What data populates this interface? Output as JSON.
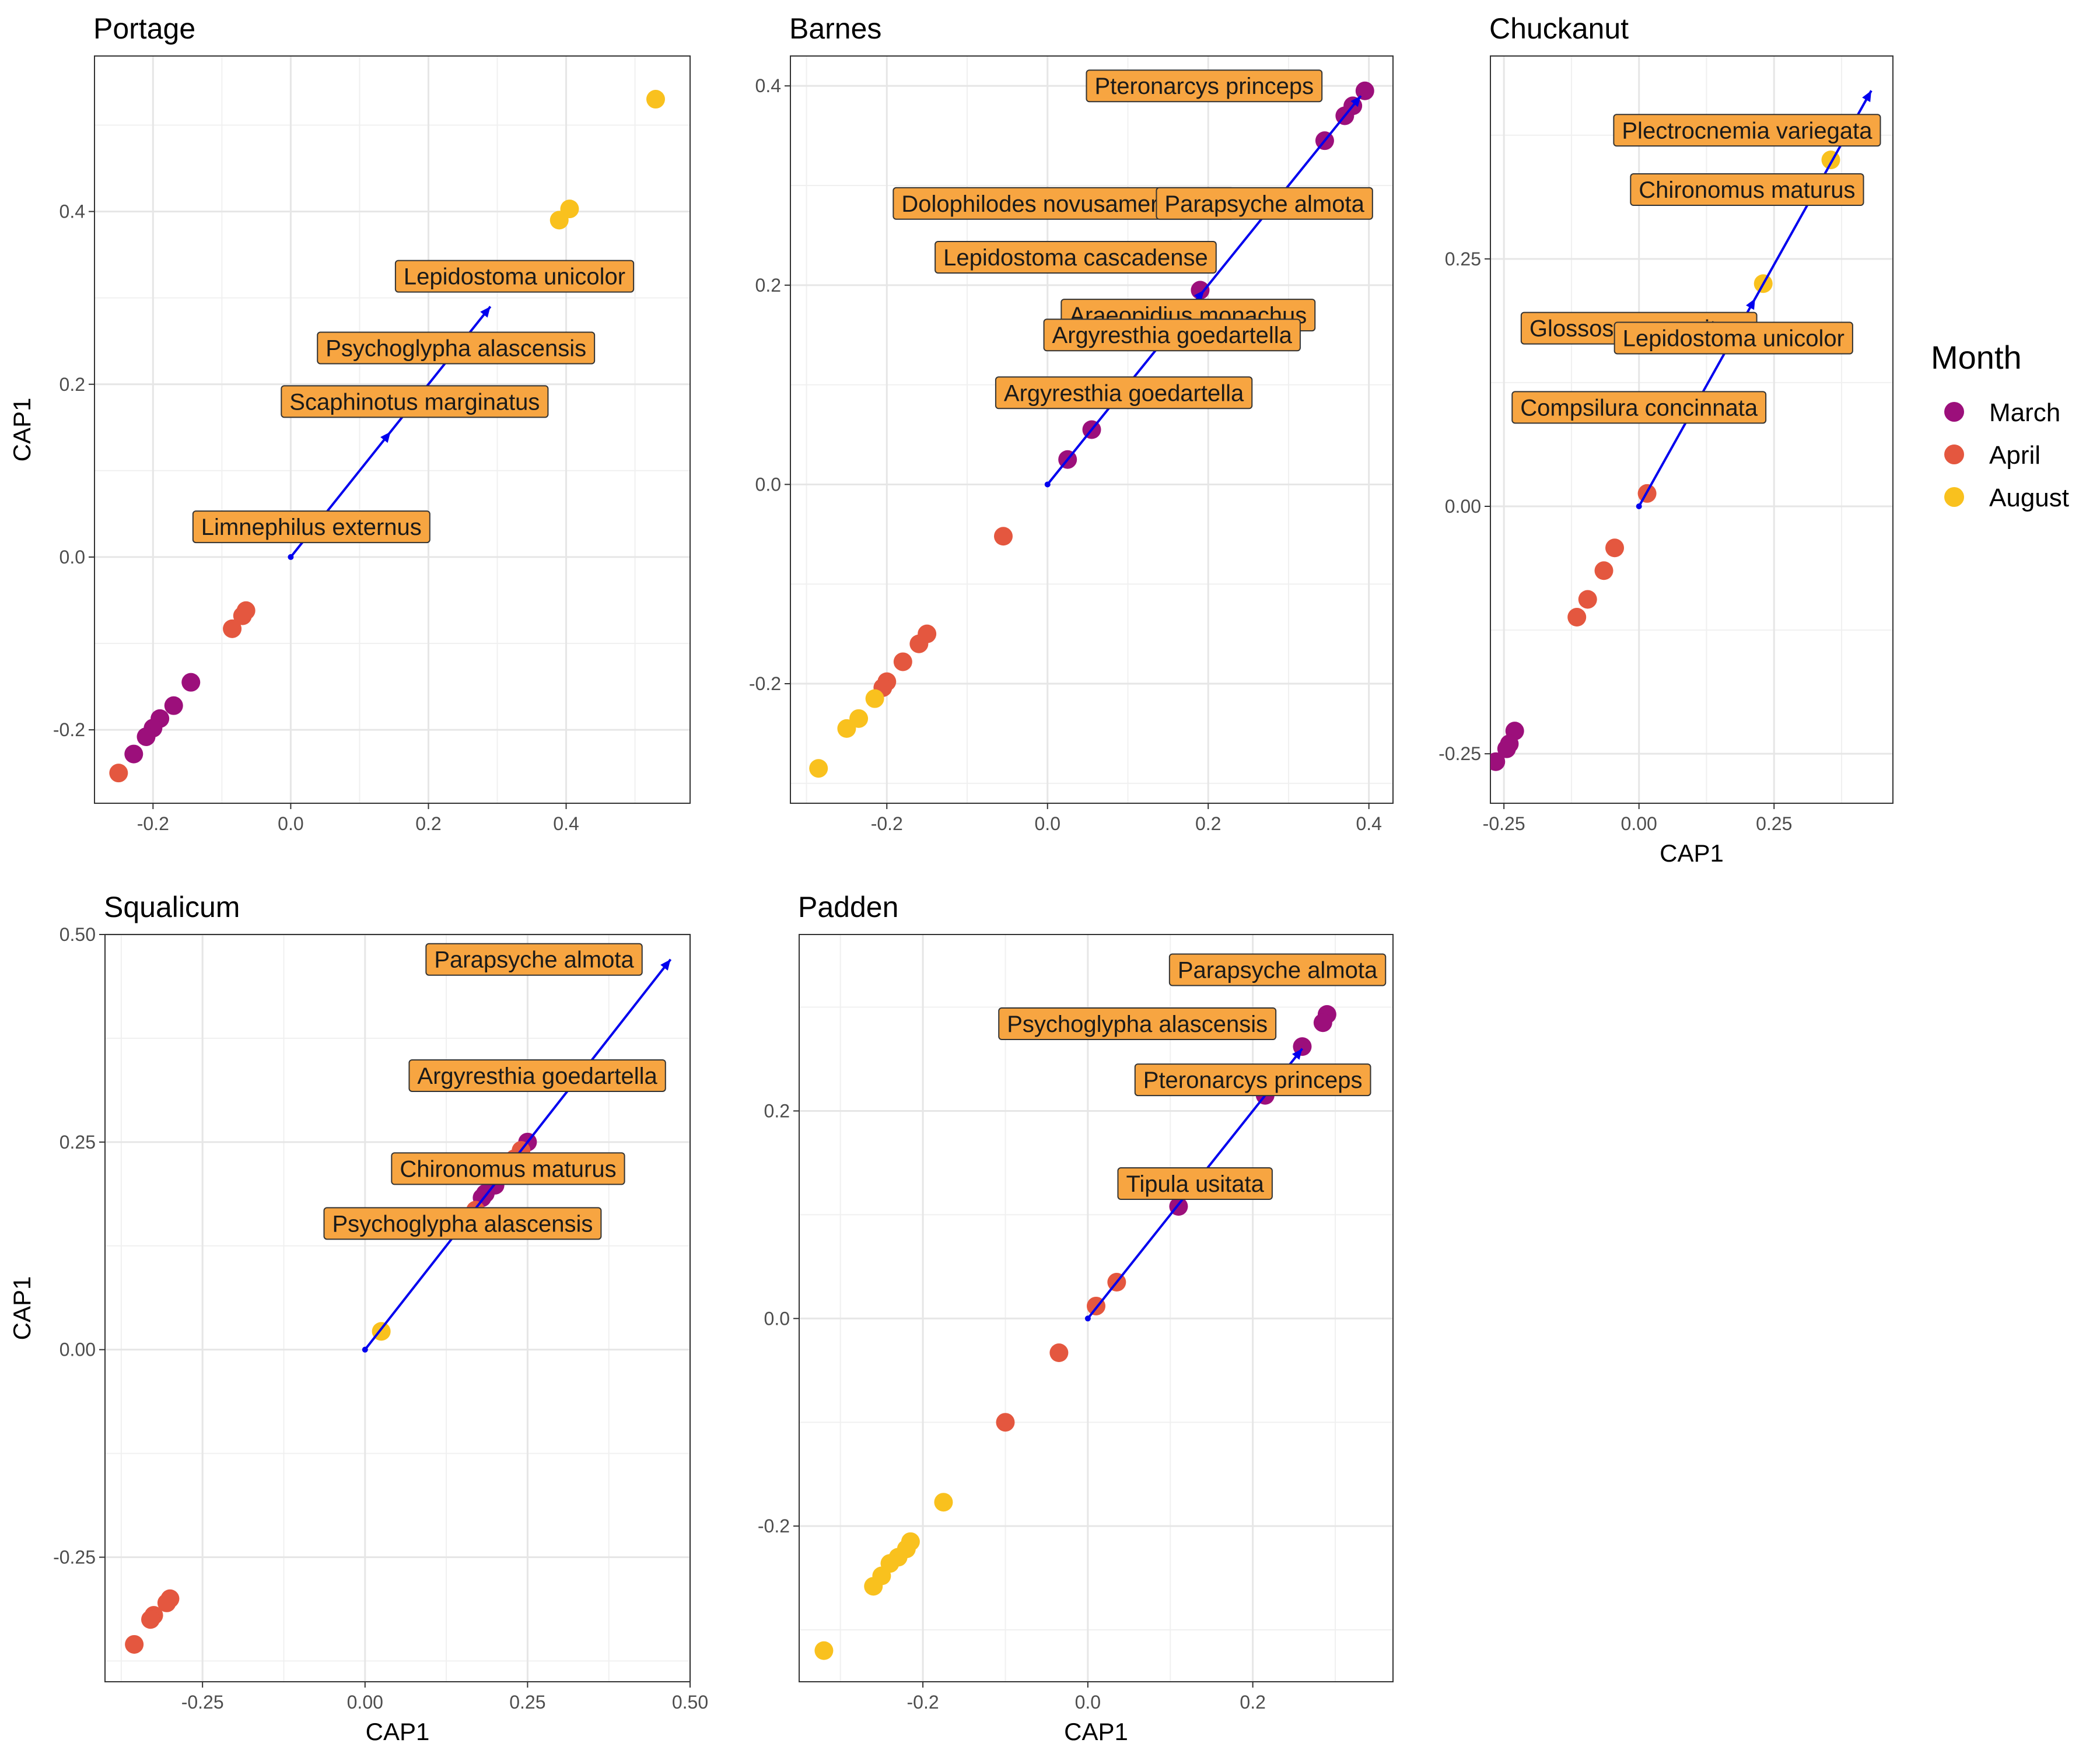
{
  "legend": {
    "title": "Month",
    "items": [
      {
        "label": "March",
        "color": "#9C0F7B"
      },
      {
        "label": "April",
        "color": "#E4573F"
      },
      {
        "label": "August",
        "color": "#F9C11E"
      }
    ]
  },
  "colors": {
    "March": "#9C0F7B",
    "April": "#E4573F",
    "August": "#F9C11E",
    "arrow": "#0000EE",
    "label_fill": "#F7A541"
  },
  "chart_data": [
    {
      "type": "scatter",
      "title": "Portage",
      "xlabel": "",
      "ylabel": "CAP1",
      "xlim": [
        -0.285,
        0.58
      ],
      "ylim": [
        -0.285,
        0.58
      ],
      "xticks": [
        -0.2,
        0.0,
        0.2,
        0.4
      ],
      "xtick_labels": [
        "-0.2",
        "0.0",
        "0.2",
        "0.4"
      ],
      "yticks": [
        -0.2,
        0.0,
        0.2,
        0.4
      ],
      "ytick_labels": [
        "-0.2",
        "0.0",
        "0.2",
        "0.4"
      ],
      "arrow": [
        0,
        0,
        0.29,
        0.29
      ],
      "points": [
        {
          "x": -0.145,
          "y": -0.145,
          "month": "March"
        },
        {
          "x": -0.17,
          "y": -0.172,
          "month": "March"
        },
        {
          "x": -0.19,
          "y": -0.187,
          "month": "March"
        },
        {
          "x": -0.2,
          "y": -0.198,
          "month": "March"
        },
        {
          "x": -0.21,
          "y": -0.208,
          "month": "March"
        },
        {
          "x": -0.228,
          "y": -0.228,
          "month": "March"
        },
        {
          "x": -0.065,
          "y": -0.062,
          "month": "April"
        },
        {
          "x": -0.07,
          "y": -0.068,
          "month": "April"
        },
        {
          "x": -0.085,
          "y": -0.083,
          "month": "April"
        },
        {
          "x": -0.25,
          "y": -0.25,
          "month": "April"
        },
        {
          "x": 0.39,
          "y": 0.39,
          "month": "August"
        },
        {
          "x": 0.405,
          "y": 0.403,
          "month": "August"
        },
        {
          "x": 0.53,
          "y": 0.53,
          "month": "August"
        }
      ],
      "labels": [
        {
          "text": "Lepidostoma unicolor",
          "x": 0.325,
          "y": 0.325
        },
        {
          "text": "Psychoglypha alascensis",
          "x": 0.24,
          "y": 0.242
        },
        {
          "text": "Scaphinotus marginatus",
          "x": 0.18,
          "y": 0.18
        },
        {
          "text": "Limnephilus externus",
          "x": 0.03,
          "y": 0.035
        }
      ]
    },
    {
      "type": "scatter",
      "title": "Barnes",
      "xlabel": "",
      "ylabel": "",
      "xlim": [
        -0.32,
        0.43
      ],
      "ylim": [
        -0.32,
        0.43
      ],
      "xticks": [
        -0.2,
        0.0,
        0.2,
        0.4
      ],
      "xtick_labels": [
        "-0.2",
        "0.0",
        "0.2",
        "0.4"
      ],
      "yticks": [
        -0.2,
        0.0,
        0.2,
        0.4
      ],
      "ytick_labels": [
        "-0.2",
        "0.0",
        "0.2",
        "0.4"
      ],
      "arrow": [
        0,
        0,
        0.39,
        0.39
      ],
      "points": [
        {
          "x": 0.025,
          "y": 0.025,
          "month": "March"
        },
        {
          "x": 0.055,
          "y": 0.055,
          "month": "March"
        },
        {
          "x": 0.19,
          "y": 0.195,
          "month": "March"
        },
        {
          "x": 0.345,
          "y": 0.345,
          "month": "March"
        },
        {
          "x": 0.37,
          "y": 0.37,
          "month": "March"
        },
        {
          "x": 0.38,
          "y": 0.38,
          "month": "March"
        },
        {
          "x": 0.395,
          "y": 0.395,
          "month": "March"
        },
        {
          "x": -0.055,
          "y": -0.052,
          "month": "April"
        },
        {
          "x": -0.15,
          "y": -0.15,
          "month": "April"
        },
        {
          "x": -0.16,
          "y": -0.16,
          "month": "April"
        },
        {
          "x": -0.18,
          "y": -0.178,
          "month": "April"
        },
        {
          "x": -0.2,
          "y": -0.198,
          "month": "April"
        },
        {
          "x": -0.205,
          "y": -0.204,
          "month": "April"
        },
        {
          "x": -0.215,
          "y": -0.215,
          "month": "August"
        },
        {
          "x": -0.235,
          "y": -0.235,
          "month": "August"
        },
        {
          "x": -0.25,
          "y": -0.245,
          "month": "August"
        },
        {
          "x": -0.285,
          "y": -0.285,
          "month": "August"
        }
      ],
      "labels": [
        {
          "text": "Pteronarcys princeps",
          "x": 0.195,
          "y": 0.4
        },
        {
          "text": "Dolophilodes novusamericanus",
          "x": 0.02,
          "y": 0.282
        },
        {
          "text": "Parapsyche almota",
          "x": 0.27,
          "y": 0.282
        },
        {
          "text": "Lepidostoma cascadense",
          "x": 0.035,
          "y": 0.228
        },
        {
          "text": "Araeopidius monachus",
          "x": 0.175,
          "y": 0.17
        },
        {
          "text": "Argyresthia goedartella",
          "x": 0.155,
          "y": 0.15
        },
        {
          "text": "Argyresthia goedartella",
          "x": 0.095,
          "y": 0.092
        }
      ]
    },
    {
      "type": "scatter",
      "title": "Chuckanut",
      "xlabel": "CAP1",
      "ylabel": "",
      "xlim": [
        -0.275,
        0.47
      ],
      "ylim": [
        -0.3,
        0.455
      ],
      "xticks": [
        -0.25,
        0.0,
        0.25
      ],
      "xtick_labels": [
        "-0.25",
        "0.00",
        "0.25"
      ],
      "yticks": [
        -0.25,
        0.0,
        0.25
      ],
      "ytick_labels": [
        "-0.25",
        "0.00",
        "0.25"
      ],
      "arrow": [
        0,
        0,
        0.43,
        0.42
      ],
      "points": [
        {
          "x": -0.23,
          "y": -0.227,
          "month": "March"
        },
        {
          "x": -0.24,
          "y": -0.24,
          "month": "March"
        },
        {
          "x": -0.245,
          "y": -0.245,
          "month": "March"
        },
        {
          "x": -0.265,
          "y": -0.258,
          "month": "March"
        },
        {
          "x": 0.015,
          "y": 0.013,
          "month": "April"
        },
        {
          "x": -0.045,
          "y": -0.042,
          "month": "April"
        },
        {
          "x": -0.065,
          "y": -0.065,
          "month": "April"
        },
        {
          "x": -0.095,
          "y": -0.094,
          "month": "April"
        },
        {
          "x": -0.115,
          "y": -0.112,
          "month": "April"
        },
        {
          "x": 0.23,
          "y": 0.225,
          "month": "August"
        },
        {
          "x": 0.355,
          "y": 0.35,
          "month": "August"
        }
      ],
      "labels": [
        {
          "text": "Plectrocnemia variegata",
          "x": 0.2,
          "y": 0.38
        },
        {
          "text": "Chironomus maturus",
          "x": 0.2,
          "y": 0.32
        },
        {
          "text": "Glossosoma penitum",
          "x": -0.0,
          "y": 0.18
        },
        {
          "text": "Lepidostoma unicolor",
          "x": 0.175,
          "y": 0.17
        },
        {
          "text": "Compsilura concinnata",
          "x": 0.0,
          "y": 0.1
        }
      ]
    },
    {
      "type": "scatter",
      "title": "Squalicum",
      "xlabel": "CAP1",
      "ylabel": "CAP1",
      "xlim": [
        -0.4,
        0.5
      ],
      "ylim": [
        -0.4,
        0.5
      ],
      "xticks": [
        -0.25,
        0.0,
        0.25,
        0.5
      ],
      "xtick_labels": [
        "-0.25",
        "0.00",
        "0.25",
        "0.50"
      ],
      "yticks": [
        -0.25,
        0.0,
        0.25,
        0.5
      ],
      "ytick_labels": [
        "-0.25",
        "0.00",
        "0.25",
        "0.50"
      ],
      "arrow": [
        0,
        0,
        0.47,
        0.47
      ],
      "points": [
        {
          "x": 0.25,
          "y": 0.25,
          "month": "March"
        },
        {
          "x": 0.2,
          "y": 0.198,
          "month": "March"
        },
        {
          "x": 0.185,
          "y": 0.188,
          "month": "March"
        },
        {
          "x": 0.18,
          "y": 0.183,
          "month": "March"
        },
        {
          "x": 0.24,
          "y": 0.24,
          "month": "April"
        },
        {
          "x": 0.23,
          "y": 0.23,
          "month": "April"
        },
        {
          "x": 0.22,
          "y": 0.22,
          "month": "April"
        },
        {
          "x": 0.17,
          "y": 0.168,
          "month": "April"
        },
        {
          "x": -0.3,
          "y": -0.3,
          "month": "April"
        },
        {
          "x": -0.305,
          "y": -0.305,
          "month": "April"
        },
        {
          "x": -0.325,
          "y": -0.32,
          "month": "April"
        },
        {
          "x": -0.33,
          "y": -0.325,
          "month": "April"
        },
        {
          "x": -0.355,
          "y": -0.355,
          "month": "April"
        },
        {
          "x": 0.025,
          "y": 0.022,
          "month": "August"
        }
      ],
      "labels": [
        {
          "text": "Parapsyche almota",
          "x": 0.26,
          "y": 0.47
        },
        {
          "text": "Argyresthia goedartella",
          "x": 0.265,
          "y": 0.33
        },
        {
          "text": "Chironomus maturus",
          "x": 0.22,
          "y": 0.218
        },
        {
          "text": "Psychoglypha alascensis",
          "x": 0.15,
          "y": 0.152
        }
      ]
    },
    {
      "type": "scatter",
      "title": "Padden",
      "xlabel": "CAP1",
      "ylabel": "",
      "xlim": [
        -0.35,
        0.37
      ],
      "ylim": [
        -0.35,
        0.37
      ],
      "xticks": [
        -0.2,
        0.0,
        0.2
      ],
      "xtick_labels": [
        "-0.2",
        "0.0",
        "0.2"
      ],
      "yticks": [
        -0.2,
        0.0,
        0.2
      ],
      "ytick_labels": [
        "-0.2",
        "0.0",
        "0.2"
      ],
      "arrow": [
        0,
        0,
        0.26,
        0.26
      ],
      "points": [
        {
          "x": 0.29,
          "y": 0.293,
          "month": "March"
        },
        {
          "x": 0.285,
          "y": 0.285,
          "month": "March"
        },
        {
          "x": 0.26,
          "y": 0.262,
          "month": "March"
        },
        {
          "x": 0.215,
          "y": 0.215,
          "month": "March"
        },
        {
          "x": 0.11,
          "y": 0.108,
          "month": "March"
        },
        {
          "x": 0.34,
          "y": 0.34,
          "month": "April"
        },
        {
          "x": 0.125,
          "y": 0.127,
          "month": "April"
        },
        {
          "x": 0.035,
          "y": 0.035,
          "month": "April"
        },
        {
          "x": 0.01,
          "y": 0.012,
          "month": "April"
        },
        {
          "x": -0.035,
          "y": -0.033,
          "month": "April"
        },
        {
          "x": -0.1,
          "y": -0.1,
          "month": "April"
        },
        {
          "x": -0.175,
          "y": -0.177,
          "month": "August"
        },
        {
          "x": -0.215,
          "y": -0.215,
          "month": "August"
        },
        {
          "x": -0.22,
          "y": -0.222,
          "month": "August"
        },
        {
          "x": -0.23,
          "y": -0.23,
          "month": "August"
        },
        {
          "x": -0.24,
          "y": -0.236,
          "month": "August"
        },
        {
          "x": -0.25,
          "y": -0.248,
          "month": "August"
        },
        {
          "x": -0.26,
          "y": -0.258,
          "month": "August"
        },
        {
          "x": -0.32,
          "y": -0.32,
          "month": "August"
        }
      ],
      "labels": [
        {
          "text": "Parapsyche almota",
          "x": 0.23,
          "y": 0.336
        },
        {
          "text": "Psychoglypha alascensis",
          "x": 0.06,
          "y": 0.284
        },
        {
          "text": "Pteronarcys princeps",
          "x": 0.2,
          "y": 0.23
        },
        {
          "text": "Tipula usitata",
          "x": 0.13,
          "y": 0.13
        }
      ]
    }
  ]
}
